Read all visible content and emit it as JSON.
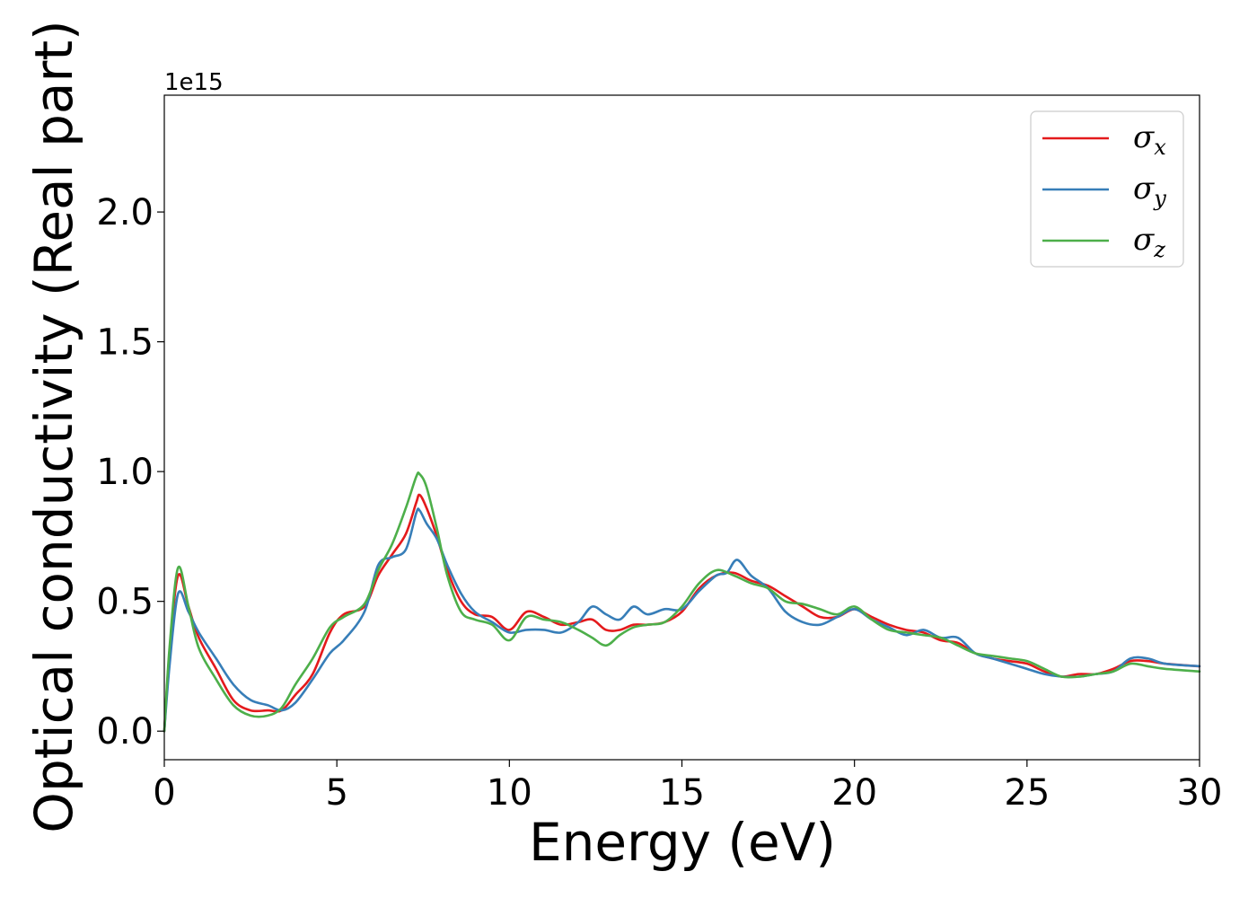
{
  "chart_data": {
    "type": "line",
    "title": "",
    "xlabel": "Energy (eV)",
    "ylabel": "Optical conductivity (Real part)",
    "y_offset_label": "1e15",
    "xlim": [
      0,
      30
    ],
    "ylim": [
      -0.11,
      2.45
    ],
    "x_ticks": [
      0,
      5,
      10,
      15,
      20,
      25,
      30
    ],
    "x_tick_labels": [
      "0",
      "5",
      "10",
      "15",
      "20",
      "25",
      "30"
    ],
    "y_ticks": [
      0.0,
      0.5,
      1.0,
      1.5,
      2.0
    ],
    "y_tick_labels": [
      "0.0",
      "0.5",
      "1.0",
      "1.5",
      "2.0"
    ],
    "grid": false,
    "legend_position": "top-right",
    "series": [
      {
        "name": "σx",
        "legend_symbol": "σ",
        "legend_subscript": "x",
        "color": "#e41a1c",
        "points": [
          [
            0,
            0
          ],
          [
            0.15,
            0.3
          ],
          [
            0.4,
            0.6
          ],
          [
            0.7,
            0.48
          ],
          [
            1.0,
            0.36
          ],
          [
            1.5,
            0.24
          ],
          [
            2.0,
            0.12
          ],
          [
            2.5,
            0.08
          ],
          [
            3.0,
            0.08
          ],
          [
            3.4,
            0.08
          ],
          [
            3.8,
            0.14
          ],
          [
            4.3,
            0.22
          ],
          [
            4.8,
            0.38
          ],
          [
            5.2,
            0.45
          ],
          [
            5.8,
            0.48
          ],
          [
            6.2,
            0.6
          ],
          [
            6.6,
            0.68
          ],
          [
            7.0,
            0.76
          ],
          [
            7.3,
            0.88
          ],
          [
            7.4,
            0.91
          ],
          [
            7.6,
            0.86
          ],
          [
            7.9,
            0.75
          ],
          [
            8.2,
            0.62
          ],
          [
            8.6,
            0.5
          ],
          [
            9.0,
            0.45
          ],
          [
            9.5,
            0.44
          ],
          [
            10.0,
            0.39
          ],
          [
            10.5,
            0.46
          ],
          [
            11.0,
            0.44
          ],
          [
            11.5,
            0.41
          ],
          [
            12.0,
            0.42
          ],
          [
            12.4,
            0.43
          ],
          [
            12.8,
            0.39
          ],
          [
            13.2,
            0.39
          ],
          [
            13.6,
            0.41
          ],
          [
            14.0,
            0.41
          ],
          [
            14.5,
            0.42
          ],
          [
            15.0,
            0.46
          ],
          [
            15.5,
            0.55
          ],
          [
            16.0,
            0.6
          ],
          [
            16.5,
            0.61
          ],
          [
            17.0,
            0.58
          ],
          [
            17.5,
            0.56
          ],
          [
            18.0,
            0.52
          ],
          [
            18.5,
            0.48
          ],
          [
            19.0,
            0.44
          ],
          [
            19.5,
            0.44
          ],
          [
            20.0,
            0.47
          ],
          [
            20.5,
            0.44
          ],
          [
            21.0,
            0.41
          ],
          [
            21.5,
            0.39
          ],
          [
            22.0,
            0.38
          ],
          [
            22.5,
            0.35
          ],
          [
            23.0,
            0.34
          ],
          [
            23.5,
            0.3
          ],
          [
            24.0,
            0.28
          ],
          [
            24.5,
            0.27
          ],
          [
            25.0,
            0.26
          ],
          [
            25.5,
            0.23
          ],
          [
            26.0,
            0.21
          ],
          [
            26.5,
            0.22
          ],
          [
            27.0,
            0.22
          ],
          [
            27.5,
            0.24
          ],
          [
            28.0,
            0.27
          ],
          [
            28.5,
            0.27
          ],
          [
            29.0,
            0.26
          ],
          [
            30.0,
            0.25
          ]
        ]
      },
      {
        "name": "σy",
        "legend_symbol": "σ",
        "legend_subscript": "y",
        "color": "#377eb8",
        "points": [
          [
            0,
            0
          ],
          [
            0.15,
            0.25
          ],
          [
            0.4,
            0.53
          ],
          [
            0.7,
            0.46
          ],
          [
            1.0,
            0.38
          ],
          [
            1.5,
            0.28
          ],
          [
            2.0,
            0.18
          ],
          [
            2.5,
            0.12
          ],
          [
            3.0,
            0.1
          ],
          [
            3.4,
            0.08
          ],
          [
            3.8,
            0.11
          ],
          [
            4.3,
            0.2
          ],
          [
            4.8,
            0.3
          ],
          [
            5.2,
            0.35
          ],
          [
            5.8,
            0.46
          ],
          [
            6.2,
            0.64
          ],
          [
            6.6,
            0.67
          ],
          [
            7.0,
            0.7
          ],
          [
            7.3,
            0.84
          ],
          [
            7.4,
            0.85
          ],
          [
            7.6,
            0.8
          ],
          [
            7.9,
            0.74
          ],
          [
            8.2,
            0.64
          ],
          [
            8.6,
            0.53
          ],
          [
            9.0,
            0.46
          ],
          [
            9.5,
            0.42
          ],
          [
            10.0,
            0.38
          ],
          [
            10.5,
            0.39
          ],
          [
            11.0,
            0.39
          ],
          [
            11.5,
            0.38
          ],
          [
            12.0,
            0.42
          ],
          [
            12.4,
            0.48
          ],
          [
            12.8,
            0.45
          ],
          [
            13.2,
            0.43
          ],
          [
            13.6,
            0.48
          ],
          [
            14.0,
            0.45
          ],
          [
            14.5,
            0.47
          ],
          [
            15.0,
            0.47
          ],
          [
            15.5,
            0.54
          ],
          [
            16.0,
            0.6
          ],
          [
            16.3,
            0.61
          ],
          [
            16.6,
            0.66
          ],
          [
            17.0,
            0.6
          ],
          [
            17.5,
            0.55
          ],
          [
            18.0,
            0.46
          ],
          [
            18.5,
            0.42
          ],
          [
            19.0,
            0.41
          ],
          [
            19.5,
            0.44
          ],
          [
            20.0,
            0.47
          ],
          [
            20.5,
            0.43
          ],
          [
            21.0,
            0.4
          ],
          [
            21.5,
            0.37
          ],
          [
            22.0,
            0.39
          ],
          [
            22.5,
            0.36
          ],
          [
            23.0,
            0.36
          ],
          [
            23.5,
            0.3
          ],
          [
            24.0,
            0.28
          ],
          [
            24.5,
            0.26
          ],
          [
            25.0,
            0.24
          ],
          [
            25.5,
            0.22
          ],
          [
            26.0,
            0.21
          ],
          [
            26.5,
            0.21
          ],
          [
            27.0,
            0.22
          ],
          [
            27.5,
            0.23
          ],
          [
            28.0,
            0.28
          ],
          [
            28.5,
            0.28
          ],
          [
            29.0,
            0.26
          ],
          [
            30.0,
            0.25
          ]
        ]
      },
      {
        "name": "σz",
        "legend_symbol": "σ",
        "legend_subscript": "z",
        "color": "#4daf4a",
        "points": [
          [
            0,
            0
          ],
          [
            0.15,
            0.32
          ],
          [
            0.4,
            0.63
          ],
          [
            0.7,
            0.48
          ],
          [
            1.0,
            0.32
          ],
          [
            1.5,
            0.2
          ],
          [
            2.0,
            0.1
          ],
          [
            2.5,
            0.06
          ],
          [
            3.0,
            0.06
          ],
          [
            3.4,
            0.09
          ],
          [
            3.8,
            0.18
          ],
          [
            4.3,
            0.28
          ],
          [
            4.8,
            0.4
          ],
          [
            5.2,
            0.44
          ],
          [
            5.8,
            0.49
          ],
          [
            6.2,
            0.62
          ],
          [
            6.6,
            0.72
          ],
          [
            7.0,
            0.86
          ],
          [
            7.3,
            0.98
          ],
          [
            7.4,
            0.99
          ],
          [
            7.6,
            0.94
          ],
          [
            7.9,
            0.78
          ],
          [
            8.2,
            0.6
          ],
          [
            8.6,
            0.46
          ],
          [
            9.0,
            0.43
          ],
          [
            9.5,
            0.41
          ],
          [
            10.0,
            0.35
          ],
          [
            10.5,
            0.44
          ],
          [
            11.0,
            0.43
          ],
          [
            11.5,
            0.42
          ],
          [
            12.0,
            0.39
          ],
          [
            12.4,
            0.36
          ],
          [
            12.8,
            0.33
          ],
          [
            13.2,
            0.37
          ],
          [
            13.6,
            0.4
          ],
          [
            14.0,
            0.41
          ],
          [
            14.5,
            0.42
          ],
          [
            15.0,
            0.48
          ],
          [
            15.5,
            0.57
          ],
          [
            16.0,
            0.62
          ],
          [
            16.5,
            0.6
          ],
          [
            17.0,
            0.57
          ],
          [
            17.5,
            0.55
          ],
          [
            18.0,
            0.5
          ],
          [
            18.5,
            0.49
          ],
          [
            19.0,
            0.47
          ],
          [
            19.5,
            0.45
          ],
          [
            20.0,
            0.48
          ],
          [
            20.5,
            0.43
          ],
          [
            21.0,
            0.39
          ],
          [
            21.5,
            0.38
          ],
          [
            22.0,
            0.37
          ],
          [
            22.5,
            0.36
          ],
          [
            23.0,
            0.33
          ],
          [
            23.5,
            0.3
          ],
          [
            24.0,
            0.29
          ],
          [
            24.5,
            0.28
          ],
          [
            25.0,
            0.27
          ],
          [
            25.5,
            0.24
          ],
          [
            26.0,
            0.21
          ],
          [
            26.5,
            0.21
          ],
          [
            27.0,
            0.22
          ],
          [
            27.5,
            0.23
          ],
          [
            28.0,
            0.26
          ],
          [
            28.5,
            0.25
          ],
          [
            29.0,
            0.24
          ],
          [
            30.0,
            0.23
          ]
        ]
      }
    ]
  }
}
